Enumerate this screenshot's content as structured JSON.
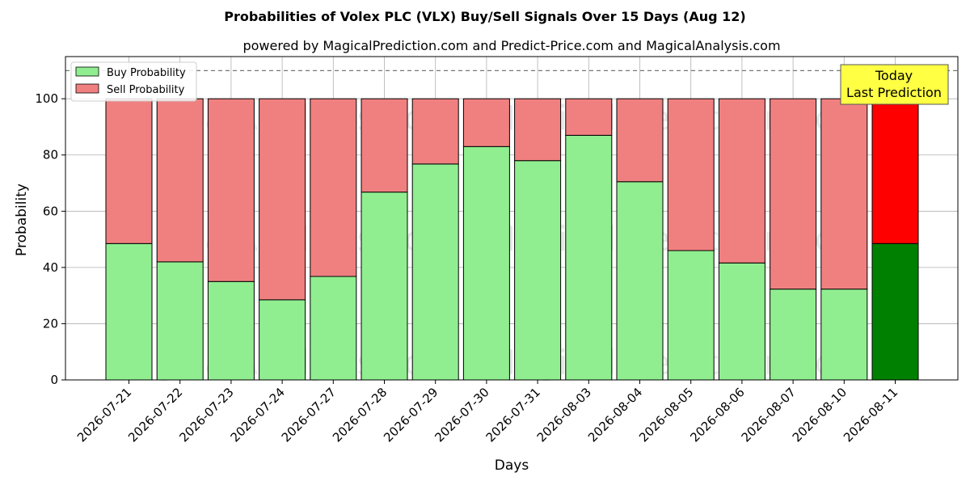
{
  "chart_data": {
    "type": "bar",
    "stacked": true,
    "title": "Probabilities of Volex PLC (VLX) Buy/Sell Signals Over 15 Days (Aug 12)",
    "subtitle": "powered by MagicalPrediction.com and Predict-Price.com and MagicalAnalysis.com",
    "xlabel": "Days",
    "ylabel": "Probability",
    "ylim": [
      0,
      115
    ],
    "yticks": [
      0,
      20,
      40,
      60,
      80,
      100
    ],
    "grid": true,
    "legend_position": "top-left",
    "reference_line": 110,
    "categories": [
      "2026-07-21",
      "2026-07-22",
      "2026-07-23",
      "2026-07-24",
      "2026-07-27",
      "2026-07-28",
      "2026-07-29",
      "2026-07-30",
      "2026-07-31",
      "2026-08-03",
      "2026-08-04",
      "2026-08-05",
      "2026-08-06",
      "2026-08-07",
      "2026-08-10",
      "2026-08-11"
    ],
    "series": [
      {
        "name": "Buy Probability",
        "values": [
          48.5,
          42,
          35,
          28.5,
          36.8,
          66.8,
          76.8,
          83,
          78,
          87,
          70.5,
          46,
          41.6,
          32.3,
          32.3,
          48.5
        ]
      },
      {
        "name": "Sell Probability",
        "values": [
          51.5,
          58,
          65,
          71.5,
          63.2,
          33.2,
          23.2,
          17,
          22,
          13,
          29.5,
          54,
          58.4,
          67.7,
          67.7,
          51.5
        ]
      }
    ],
    "colors": {
      "buy": "#90ee90",
      "sell": "#f08080",
      "buy_highlight": "#008000",
      "sell_highlight": "#ff0000",
      "annotation_bg": "#ffff44"
    },
    "highlight_index": 15,
    "annotation": {
      "line1": "Today",
      "line2": "Last Prediction"
    },
    "watermarks": [
      "MagicalAnalysis.com",
      "MagicalPrediction.com"
    ]
  }
}
